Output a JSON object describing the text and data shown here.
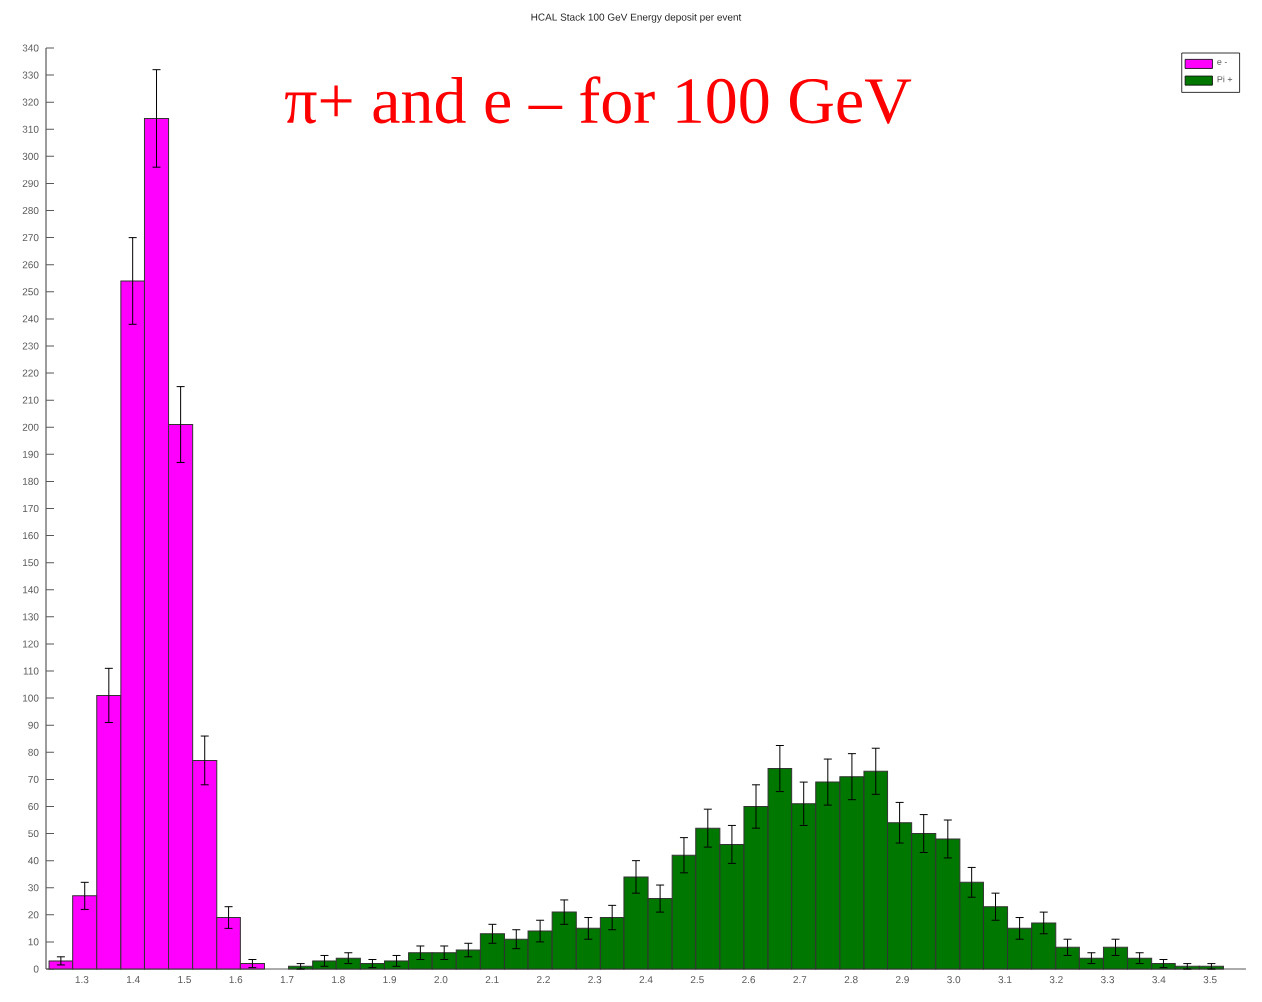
{
  "chart_data": {
    "type": "histogram",
    "title": "HCAL Stack 100 GeV Energy deposit per event",
    "annotations": [
      "π+ and e – for 100 GeV"
    ],
    "bins": [
      1.236,
      1.282,
      1.329,
      1.376,
      1.422,
      1.469,
      1.516,
      1.563,
      1.609,
      1.656,
      1.703,
      1.75,
      1.796,
      1.843,
      1.89,
      1.937,
      1.983,
      2.03,
      2.077,
      2.124,
      2.17,
      2.217,
      2.264,
      2.311,
      2.357,
      2.404,
      2.451,
      2.497,
      2.544,
      2.591,
      2.638,
      2.684,
      2.731,
      2.778,
      2.825,
      2.871,
      2.918,
      2.965,
      3.012,
      3.058,
      3.105,
      3.152,
      3.199,
      3.245,
      3.292,
      3.339,
      3.386,
      3.432,
      3.479,
      3.526
    ],
    "series": [
      {
        "name": "e -",
        "color": "#ff00ff",
        "values": [
          3,
          27,
          101,
          254,
          314,
          201,
          77,
          19,
          2,
          null,
          null,
          null,
          null,
          null,
          null,
          null,
          null,
          null,
          null,
          null,
          null,
          null,
          null,
          null,
          null,
          null,
          null,
          null,
          null,
          null,
          null,
          null,
          null,
          null,
          null,
          null,
          null,
          null,
          null,
          null,
          null,
          null,
          null,
          null,
          null,
          null,
          null,
          null,
          null
        ],
        "errors": [
          1.5,
          5,
          10,
          16,
          18,
          14,
          9,
          4,
          1.5,
          null,
          null,
          null,
          null,
          null,
          null,
          null,
          null,
          null,
          null,
          null,
          null,
          null,
          null,
          null,
          null,
          null,
          null,
          null,
          null,
          null,
          null,
          null,
          null,
          null,
          null,
          null,
          null,
          null,
          null,
          null,
          null,
          null,
          null,
          null,
          null,
          null,
          null,
          null,
          null
        ]
      },
      {
        "name": "Pi +",
        "color": "#007800",
        "values": [
          null,
          null,
          null,
          null,
          null,
          null,
          null,
          null,
          null,
          null,
          1,
          3,
          4,
          2,
          3,
          6,
          6,
          7,
          13,
          11,
          14,
          21,
          15,
          19,
          34,
          26,
          42,
          52,
          46,
          60,
          74,
          61,
          69,
          71,
          73,
          54,
          50,
          48,
          32,
          23,
          15,
          17,
          8,
          4,
          8,
          4,
          2,
          1,
          1
        ],
        "errors": [
          null,
          null,
          null,
          null,
          null,
          null,
          null,
          null,
          null,
          null,
          1,
          2,
          2,
          1.5,
          2,
          2.5,
          2.5,
          2.5,
          3.5,
          3.5,
          4,
          4.5,
          4,
          4.5,
          6,
          5,
          6.5,
          7,
          7,
          8,
          8.5,
          8,
          8.5,
          8.5,
          8.5,
          7.5,
          7,
          7,
          5.5,
          5,
          4,
          4,
          3,
          2,
          3,
          2,
          1.5,
          1,
          1
        ]
      }
    ],
    "xlim": [
      1.23,
      3.57
    ],
    "ylim": [
      0,
      340
    ],
    "xticks": [
      1.3,
      1.4,
      1.5,
      1.6,
      1.7,
      1.8,
      1.9,
      {
        "value": 2,
        "label": "2.0"
      },
      2.1,
      2.2,
      2.3,
      2.4,
      2.5,
      2.6,
      2.7,
      2.8,
      2.9,
      {
        "value": 3,
        "label": "3.0"
      },
      3.1,
      3.2,
      3.3,
      3.4,
      3.5
    ],
    "yticks": [
      0,
      10,
      20,
      30,
      40,
      50,
      60,
      70,
      80,
      90,
      100,
      110,
      120,
      130,
      140,
      150,
      160,
      170,
      180,
      190,
      200,
      210,
      220,
      230,
      240,
      250,
      260,
      270,
      280,
      290,
      300,
      310,
      320,
      330,
      340
    ],
    "legend": "top right",
    "grid": false
  }
}
